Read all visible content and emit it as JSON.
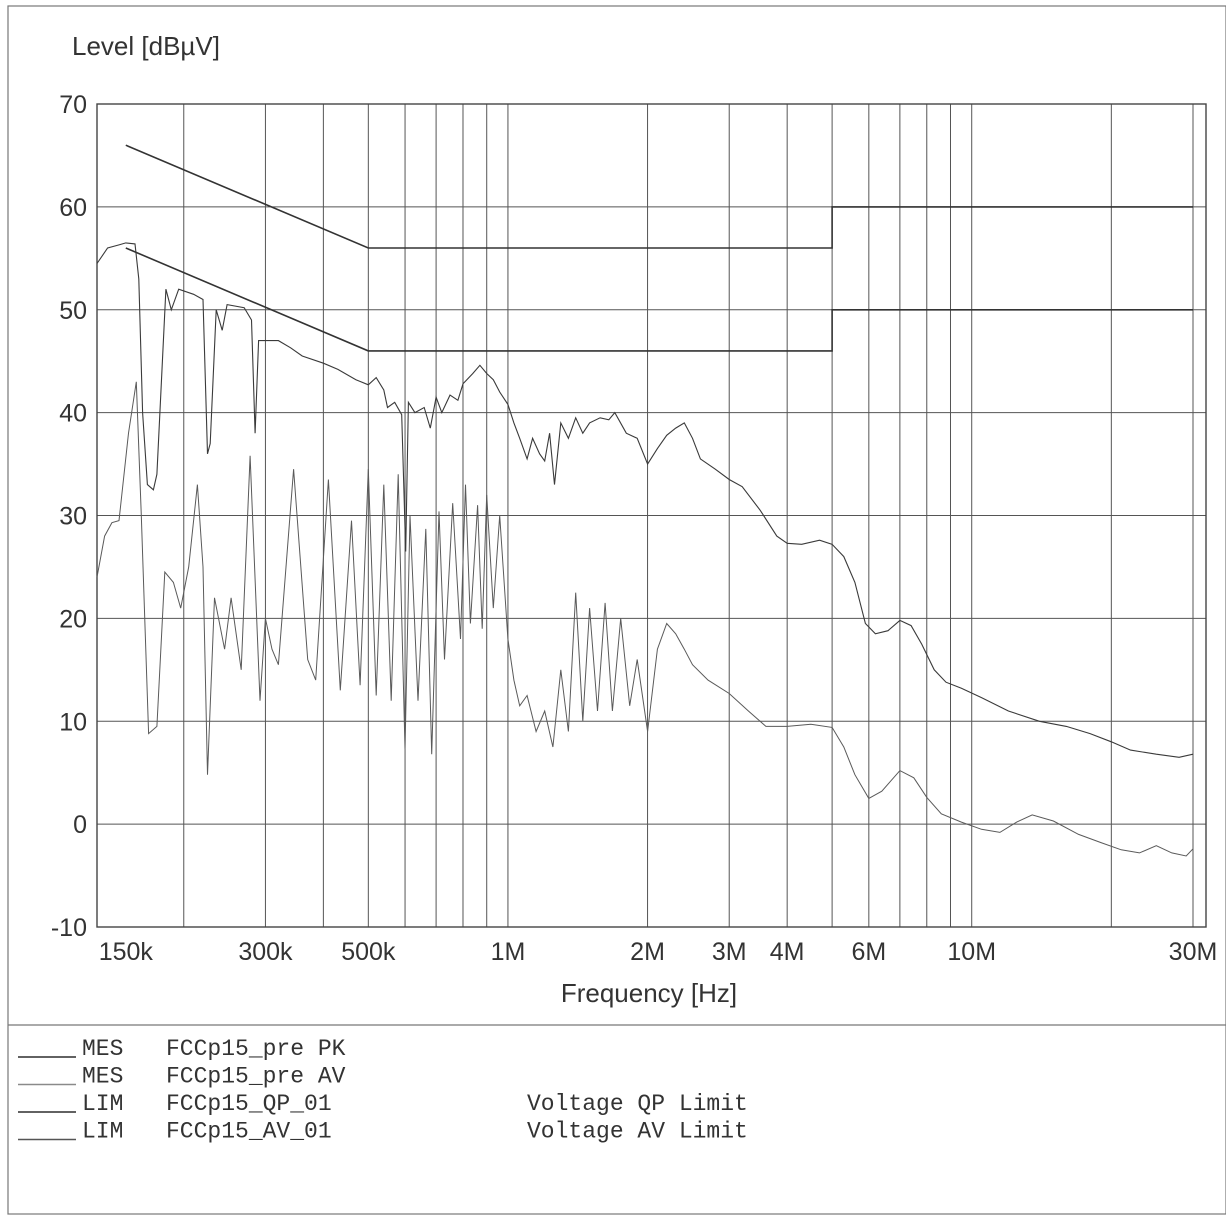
{
  "chart_data": {
    "type": "line",
    "ylabel": "Level [dBµV]",
    "xlabel": "Frequency [Hz]",
    "x_scale": "log",
    "xlim": [
      130000,
      32000000
    ],
    "ylim": [
      -10,
      70
    ],
    "y_ticks": [
      70,
      60,
      50,
      40,
      30,
      20,
      10,
      0,
      -10
    ],
    "x_ticks": [
      {
        "value": 150000,
        "label": "150k"
      },
      {
        "value": 300000,
        "label": "300k"
      },
      {
        "value": 500000,
        "label": "500k"
      },
      {
        "value": 1000000,
        "label": "1M"
      },
      {
        "value": 2000000,
        "label": "2M"
      },
      {
        "value": 3000000,
        "label": "3M"
      },
      {
        "value": 4000000,
        "label": "4M"
      },
      {
        "value": 6000000,
        "label": "6M"
      },
      {
        "value": 10000000,
        "label": "10M"
      },
      {
        "value": 30000000,
        "label": "30M"
      }
    ],
    "grid": true,
    "series": [
      {
        "name": "Voltage QP Limit",
        "kind": "limit",
        "points": [
          [
            150000,
            66
          ],
          [
            500000,
            56
          ],
          [
            5000000,
            56
          ],
          [
            5000000,
            60
          ],
          [
            30000000,
            60
          ]
        ]
      },
      {
        "name": "Voltage AV Limit",
        "kind": "limit",
        "points": [
          [
            150000,
            56
          ],
          [
            500000,
            46
          ],
          [
            5000000,
            46
          ],
          [
            5000000,
            50
          ],
          [
            30000000,
            50
          ]
        ]
      },
      {
        "name": "FCCp15_pre PK",
        "kind": "measurement",
        "points": [
          [
            130000,
            54.5
          ],
          [
            137000,
            56
          ],
          [
            145000,
            56.3
          ],
          [
            150000,
            56.5
          ],
          [
            157000,
            56.4
          ],
          [
            160000,
            53
          ],
          [
            163000,
            40
          ],
          [
            167000,
            33
          ],
          [
            172000,
            32.5
          ],
          [
            175000,
            34
          ],
          [
            183000,
            52
          ],
          [
            188000,
            50
          ],
          [
            195000,
            52
          ],
          [
            210000,
            51.5
          ],
          [
            220000,
            51
          ],
          [
            225000,
            36
          ],
          [
            228000,
            37
          ],
          [
            235000,
            50
          ],
          [
            242000,
            48
          ],
          [
            248000,
            50.5
          ],
          [
            270000,
            50.2
          ],
          [
            280000,
            49
          ],
          [
            285000,
            38
          ],
          [
            290000,
            47
          ],
          [
            320000,
            47
          ],
          [
            340000,
            46.3
          ],
          [
            360000,
            45.5
          ],
          [
            400000,
            44.8
          ],
          [
            430000,
            44.2
          ],
          [
            470000,
            43.2
          ],
          [
            500000,
            42.7
          ],
          [
            520000,
            43.4
          ],
          [
            540000,
            42.2
          ],
          [
            550000,
            40.5
          ],
          [
            570000,
            41
          ],
          [
            590000,
            39.8
          ],
          [
            602000,
            26.5
          ],
          [
            610000,
            41
          ],
          [
            630000,
            40
          ],
          [
            660000,
            40.5
          ],
          [
            680000,
            38.5
          ],
          [
            700000,
            41.5
          ],
          [
            720000,
            40
          ],
          [
            750000,
            41.7
          ],
          [
            780000,
            41.2
          ],
          [
            800000,
            42.8
          ],
          [
            840000,
            43.8
          ],
          [
            870000,
            44.6
          ],
          [
            900000,
            43.8
          ],
          [
            930000,
            43.2
          ],
          [
            960000,
            42
          ],
          [
            1000000,
            40.8
          ],
          [
            1030000,
            39
          ],
          [
            1060000,
            37.5
          ],
          [
            1100000,
            35.5
          ],
          [
            1130000,
            37.5
          ],
          [
            1170000,
            36
          ],
          [
            1200000,
            35.3
          ],
          [
            1230000,
            38
          ],
          [
            1260000,
            33
          ],
          [
            1300000,
            39
          ],
          [
            1350000,
            37.5
          ],
          [
            1400000,
            39.5
          ],
          [
            1450000,
            38
          ],
          [
            1500000,
            39
          ],
          [
            1580000,
            39.5
          ],
          [
            1650000,
            39.3
          ],
          [
            1700000,
            40
          ],
          [
            1800000,
            38
          ],
          [
            1900000,
            37.5
          ],
          [
            2000000,
            35
          ],
          [
            2100000,
            36.5
          ],
          [
            2200000,
            37.8
          ],
          [
            2300000,
            38.5
          ],
          [
            2400000,
            39
          ],
          [
            2500000,
            37.5
          ],
          [
            2600000,
            35.5
          ],
          [
            2800000,
            34.5
          ],
          [
            3000000,
            33.5
          ],
          [
            3200000,
            32.8
          ],
          [
            3500000,
            30.5
          ],
          [
            3800000,
            28
          ],
          [
            4000000,
            27.3
          ],
          [
            4300000,
            27.2
          ],
          [
            4700000,
            27.6
          ],
          [
            5000000,
            27.2
          ],
          [
            5300000,
            26
          ],
          [
            5600000,
            23.5
          ],
          [
            5900000,
            19.5
          ],
          [
            6200000,
            18.5
          ],
          [
            6600000,
            18.8
          ],
          [
            7000000,
            19.8
          ],
          [
            7400000,
            19.3
          ],
          [
            7800000,
            17.5
          ],
          [
            8300000,
            15
          ],
          [
            8800000,
            13.8
          ],
          [
            9500000,
            13.2
          ],
          [
            10500000,
            12.3
          ],
          [
            12000000,
            11
          ],
          [
            14000000,
            10
          ],
          [
            16000000,
            9.5
          ],
          [
            18000000,
            8.8
          ],
          [
            20000000,
            8
          ],
          [
            22000000,
            7.2
          ],
          [
            25000000,
            6.8
          ],
          [
            28000000,
            6.5
          ],
          [
            30000000,
            6.8
          ]
        ]
      },
      {
        "name": "FCCp15_pre AV",
        "kind": "measurement",
        "points": [
          [
            130000,
            24
          ],
          [
            135000,
            28
          ],
          [
            140000,
            29.3
          ],
          [
            145000,
            29.5
          ],
          [
            152000,
            38
          ],
          [
            158000,
            43
          ],
          [
            162000,
            30
          ],
          [
            168000,
            8.8
          ],
          [
            175000,
            9.5
          ],
          [
            182000,
            24.5
          ],
          [
            190000,
            23.5
          ],
          [
            197000,
            21
          ],
          [
            205000,
            25
          ],
          [
            214000,
            33
          ],
          [
            220000,
            25
          ],
          [
            225000,
            4.8
          ],
          [
            233000,
            22
          ],
          [
            245000,
            17
          ],
          [
            253000,
            22
          ],
          [
            266000,
            15
          ],
          [
            278000,
            35.8
          ],
          [
            292000,
            12
          ],
          [
            300000,
            20
          ],
          [
            310000,
            17
          ],
          [
            320000,
            15.5
          ],
          [
            345000,
            34.5
          ],
          [
            370000,
            16
          ],
          [
            385000,
            14
          ],
          [
            410000,
            33.5
          ],
          [
            435000,
            13
          ],
          [
            460000,
            29.5
          ],
          [
            480000,
            13.5
          ],
          [
            500000,
            34.5
          ],
          [
            520000,
            12.5
          ],
          [
            540000,
            33
          ],
          [
            560000,
            12
          ],
          [
            580000,
            34
          ],
          [
            600000,
            7.3
          ],
          [
            615000,
            30
          ],
          [
            640000,
            12
          ],
          [
            665000,
            28.7
          ],
          [
            685000,
            6.8
          ],
          [
            710000,
            30.4
          ],
          [
            730000,
            16
          ],
          [
            760000,
            31.2
          ],
          [
            790000,
            18
          ],
          [
            810000,
            33
          ],
          [
            830000,
            19.5
          ],
          [
            860000,
            31
          ],
          [
            880000,
            19
          ],
          [
            900000,
            32
          ],
          [
            930000,
            21
          ],
          [
            960000,
            30
          ],
          [
            1000000,
            18
          ],
          [
            1030000,
            14
          ],
          [
            1060000,
            11.5
          ],
          [
            1100000,
            12.5
          ],
          [
            1150000,
            9
          ],
          [
            1200000,
            11
          ],
          [
            1250000,
            7.5
          ],
          [
            1300000,
            15
          ],
          [
            1350000,
            9
          ],
          [
            1400000,
            22.5
          ],
          [
            1450000,
            10
          ],
          [
            1500000,
            21
          ],
          [
            1560000,
            11
          ],
          [
            1620000,
            21.5
          ],
          [
            1680000,
            11
          ],
          [
            1750000,
            20
          ],
          [
            1830000,
            11.5
          ],
          [
            1900000,
            16
          ],
          [
            2000000,
            9
          ],
          [
            2100000,
            17
          ],
          [
            2200000,
            19.5
          ],
          [
            2300000,
            18.5
          ],
          [
            2400000,
            17
          ],
          [
            2500000,
            15.5
          ],
          [
            2700000,
            14
          ],
          [
            3000000,
            12.7
          ],
          [
            3300000,
            11
          ],
          [
            3600000,
            9.5
          ],
          [
            4000000,
            9.5
          ],
          [
            4500000,
            9.7
          ],
          [
            5000000,
            9.4
          ],
          [
            5300000,
            7.5
          ],
          [
            5600000,
            4.8
          ],
          [
            6000000,
            2.5
          ],
          [
            6400000,
            3.2
          ],
          [
            7000000,
            5.2
          ],
          [
            7500000,
            4.5
          ],
          [
            8000000,
            2.6
          ],
          [
            8600000,
            1
          ],
          [
            9500000,
            0.2
          ],
          [
            10500000,
            -0.5
          ],
          [
            11500000,
            -0.8
          ],
          [
            12500000,
            0.2
          ],
          [
            13500000,
            0.9
          ],
          [
            15000000,
            0.3
          ],
          [
            17000000,
            -1
          ],
          [
            19000000,
            -1.8
          ],
          [
            21000000,
            -2.5
          ],
          [
            23000000,
            -2.8
          ],
          [
            25000000,
            -2.1
          ],
          [
            27000000,
            -2.8
          ],
          [
            29000000,
            -3.1
          ],
          [
            30000000,
            -2.4
          ]
        ]
      }
    ]
  },
  "legend": {
    "rows": [
      {
        "type": "MES",
        "name": "FCCp15_pre PK",
        "desc": "",
        "color": "#2e2e2e"
      },
      {
        "type": "MES",
        "name": "FCCp15_pre AV",
        "desc": "",
        "color": "#8a8a8a"
      },
      {
        "type": "LIM",
        "name": "FCCp15_QP_01",
        "desc": "Voltage QP Limit",
        "color": "#2e2e2e"
      },
      {
        "type": "LIM",
        "name": "FCCp15_AV_01",
        "desc": "Voltage AV Limit",
        "color": "#555555"
      }
    ]
  }
}
